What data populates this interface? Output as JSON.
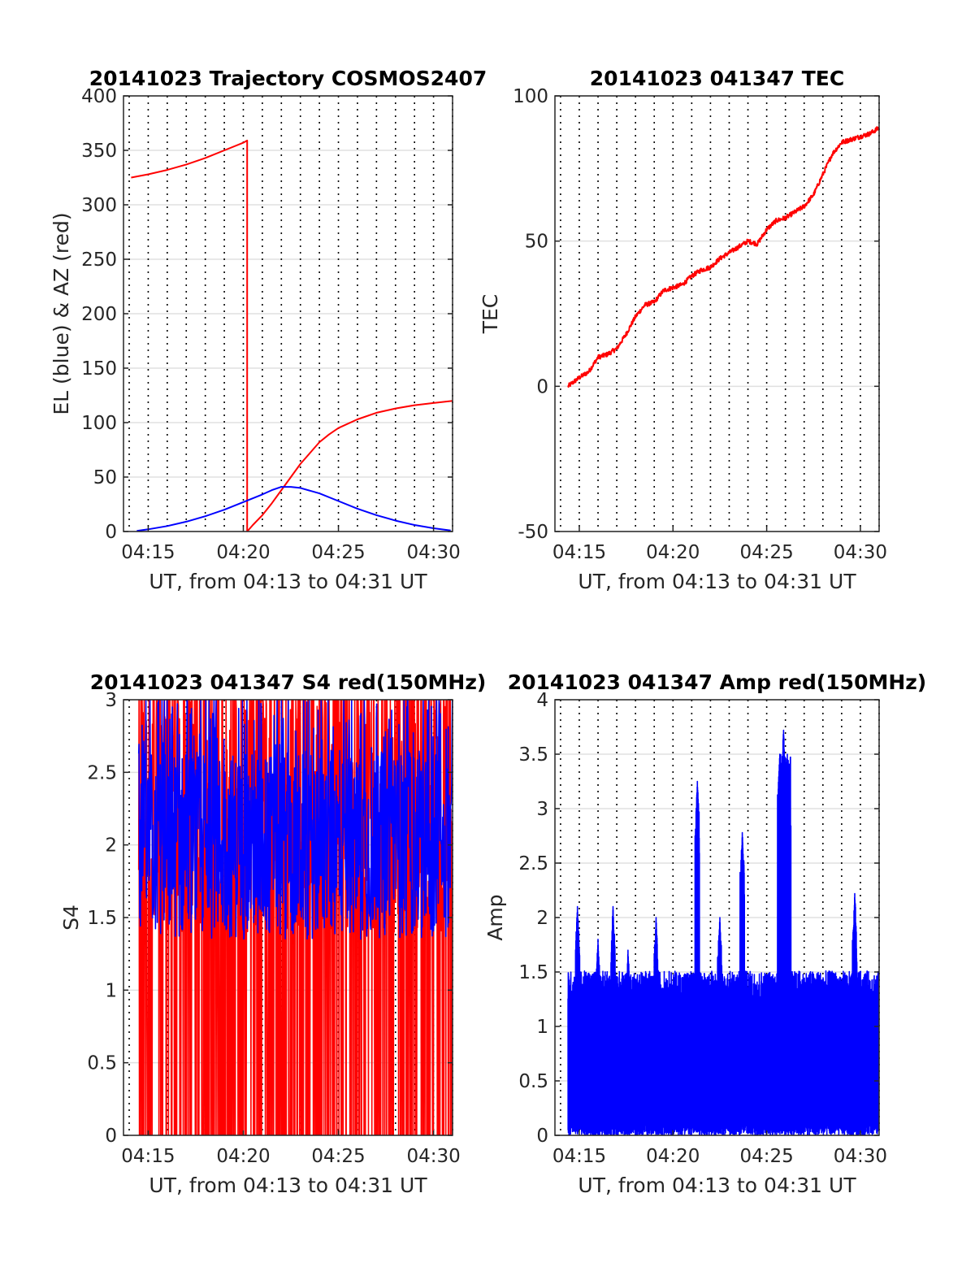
{
  "chart_data": [
    {
      "type": "line",
      "title": "20141023 Trajectory COSMOS2407",
      "xlabel": "UT, from 04:13 to 04:31 UT",
      "ylabel": "EL (blue) & AZ (red)",
      "xlim": [
        13.7,
        31.0
      ],
      "ylim": [
        0,
        400
      ],
      "xtick_values": [
        15,
        20,
        25,
        30
      ],
      "xtick_labels": [
        "04:15",
        "04:20",
        "04:25",
        "04:30"
      ],
      "ytick_values": [
        0,
        50,
        100,
        150,
        200,
        250,
        300,
        350,
        400
      ],
      "ytick_labels": [
        "0",
        "50",
        "100",
        "150",
        "200",
        "250",
        "300",
        "350",
        "400"
      ],
      "grid": true,
      "minute_gridlines": "dotted, every 1 minute",
      "series": [
        {
          "color": "#ff0000",
          "x": [
            14.1,
            15,
            16,
            17,
            18,
            19,
            20,
            20.2,
            20.2,
            20.2,
            20.5,
            21,
            21.5,
            22,
            22.5,
            23,
            23.5,
            24,
            24.5,
            25,
            26,
            27,
            28,
            29,
            30,
            31
          ],
          "y": [
            325,
            328,
            332,
            337,
            343,
            350,
            357,
            359,
            359,
            0,
            6,
            15,
            26,
            38,
            50,
            62,
            72,
            82,
            89,
            95,
            103,
            109,
            113,
            116,
            118,
            120
          ]
        },
        {
          "color": "#0000ff",
          "x": [
            14.4,
            15,
            16,
            17,
            18,
            19,
            20,
            21,
            21.5,
            22,
            22.5,
            23,
            24,
            25,
            26,
            27,
            28,
            29,
            30,
            30.9
          ],
          "y": [
            0.5,
            2,
            5,
            9,
            14,
            20,
            27,
            34,
            38,
            41,
            41,
            40,
            35,
            28,
            21,
            15,
            10,
            6,
            3,
            1
          ]
        }
      ]
    },
    {
      "type": "line",
      "title": "20141023 041347 TEC",
      "xlabel": "UT, from 04:13 to 04:31 UT",
      "ylabel": "TEC",
      "xlim": [
        13.7,
        31.0
      ],
      "ylim": [
        -50,
        100
      ],
      "xtick_values": [
        15,
        20,
        25,
        30
      ],
      "xtick_labels": [
        "04:15",
        "04:20",
        "04:25",
        "04:30"
      ],
      "ytick_values": [
        -50,
        0,
        50,
        100
      ],
      "ytick_labels": [
        "-50",
        "0",
        "50",
        "100"
      ],
      "grid": true,
      "minute_gridlines": "dotted, every 1 minute",
      "series": [
        {
          "color": "#ff0000",
          "x": [
            14.4,
            15,
            15.5,
            16,
            16.5,
            17,
            17.5,
            18,
            18.5,
            19,
            19.5,
            20,
            20.5,
            21,
            21.5,
            22,
            22.5,
            23,
            23.5,
            24,
            24.5,
            25,
            25.5,
            26,
            26.5,
            27,
            27.5,
            28,
            28.5,
            29,
            29.5,
            30,
            30.5,
            31
          ],
          "y": [
            0,
            3,
            5,
            10,
            11,
            13,
            18,
            24,
            28,
            29,
            33,
            34,
            35,
            38,
            40,
            41,
            44,
            46,
            48,
            50,
            49,
            54,
            57,
            58,
            60,
            62,
            66,
            73,
            80,
            84,
            85,
            86,
            87,
            89
          ]
        }
      ]
    },
    {
      "type": "line",
      "title": "20141023 041347 S4 red(150MHz)",
      "xlabel": "UT, from 04:13 to 04:31 UT",
      "ylabel": "S4",
      "xlim": [
        13.7,
        31.0
      ],
      "ylim": [
        0,
        3
      ],
      "xtick_values": [
        15,
        20,
        25,
        30
      ],
      "xtick_labels": [
        "04:15",
        "04:20",
        "04:25",
        "04:30"
      ],
      "ytick_values": [
        0,
        0.5,
        1,
        1.5,
        2,
        2.5,
        3
      ],
      "ytick_labels": [
        "0",
        "0.5",
        "1",
        "1.5",
        "2",
        "2.5",
        "3"
      ],
      "grid": true,
      "minute_gridlines": "dotted, every 1 minute",
      "series": [
        {
          "color": "#ff0000",
          "x_range": [
            14.5,
            31.0
          ],
          "typical_y": [
            1.4,
            3.0
          ],
          "drops_to": 0,
          "note": "dense noisy trace clipped at 3 with frequent drops to 0"
        },
        {
          "color": "#0000ff",
          "x_range": [
            14.5,
            31.0
          ],
          "typical_y": [
            1.3,
            3.0
          ],
          "centre_y": 2.0,
          "note": "dense noisy trace over the red trace"
        }
      ]
    },
    {
      "type": "line",
      "title": "20141023 041347 Amp red(150MHz)",
      "xlabel": "UT, from 04:13 to 04:31 UT",
      "ylabel": "Amp",
      "xlim": [
        13.7,
        31.0
      ],
      "ylim": [
        0,
        4
      ],
      "xtick_values": [
        15,
        20,
        25,
        30
      ],
      "xtick_labels": [
        "04:15",
        "04:20",
        "04:25",
        "04:30"
      ],
      "ytick_values": [
        0,
        0.5,
        1,
        1.5,
        2,
        2.5,
        3,
        3.5,
        4
      ],
      "ytick_labels": [
        "0",
        "0.5",
        "1",
        "1.5",
        "2",
        "2.5",
        "3",
        "3.5",
        "4"
      ],
      "grid": true,
      "minute_gridlines": "dotted, every 1 minute",
      "series": [
        {
          "color": "#0000ff",
          "x_range": [
            14.4,
            31.0
          ],
          "baseline_y": 1.3,
          "peaks": [
            {
              "x": 14.9,
              "y": 2.1
            },
            {
              "x": 16.0,
              "y": 1.8
            },
            {
              "x": 16.8,
              "y": 2.1
            },
            {
              "x": 17.6,
              "y": 1.7
            },
            {
              "x": 19.1,
              "y": 2.0
            },
            {
              "x": 21.3,
              "y": 3.25
            },
            {
              "x": 22.5,
              "y": 2.0
            },
            {
              "x": 23.7,
              "y": 2.78
            },
            {
              "x": 25.7,
              "y": 3.5
            },
            {
              "x": 25.9,
              "y": 3.72
            },
            {
              "x": 26.1,
              "y": 3.5
            },
            {
              "x": 29.7,
              "y": 2.22
            }
          ]
        }
      ]
    }
  ]
}
